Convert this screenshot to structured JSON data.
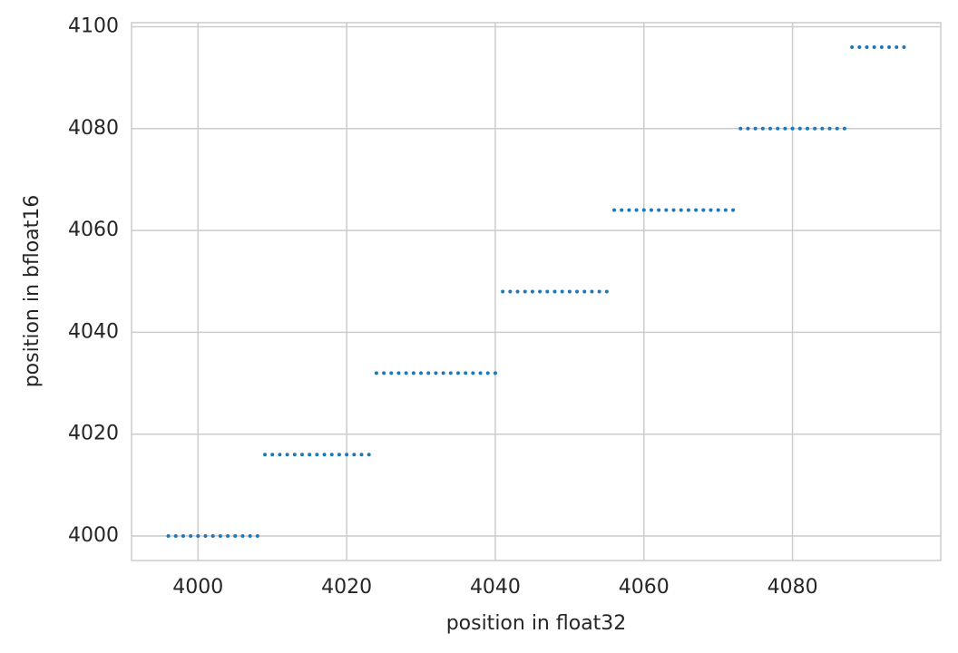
{
  "chart_data": {
    "type": "scatter",
    "x_label": "position in float32",
    "y_label": "position in bfloat16",
    "color": "#1f77b4",
    "grid": true,
    "x": [
      3996,
      3997,
      3998,
      3999,
      4000,
      4001,
      4002,
      4003,
      4004,
      4005,
      4006,
      4007,
      4008,
      4009,
      4010,
      4011,
      4012,
      4013,
      4014,
      4015,
      4016,
      4017,
      4018,
      4019,
      4020,
      4021,
      4022,
      4023,
      4024,
      4025,
      4026,
      4027,
      4028,
      4029,
      4030,
      4031,
      4032,
      4033,
      4034,
      4035,
      4036,
      4037,
      4038,
      4039,
      4040,
      4041,
      4042,
      4043,
      4044,
      4045,
      4046,
      4047,
      4048,
      4049,
      4050,
      4051,
      4052,
      4053,
      4054,
      4055,
      4056,
      4057,
      4058,
      4059,
      4060,
      4061,
      4062,
      4063,
      4064,
      4065,
      4066,
      4067,
      4068,
      4069,
      4070,
      4071,
      4072,
      4073,
      4074,
      4075,
      4076,
      4077,
      4078,
      4079,
      4080,
      4081,
      4082,
      4083,
      4084,
      4085,
      4086,
      4087,
      4088,
      4089,
      4090,
      4091,
      4092,
      4093,
      4094,
      4095
    ],
    "y": [
      4000,
      4000,
      4000,
      4000,
      4000,
      4000,
      4000,
      4000,
      4000,
      4000,
      4000,
      4000,
      4000,
      4016,
      4016,
      4016,
      4016,
      4016,
      4016,
      4016,
      4016,
      4016,
      4016,
      4016,
      4016,
      4016,
      4016,
      4016,
      4032,
      4032,
      4032,
      4032,
      4032,
      4032,
      4032,
      4032,
      4032,
      4032,
      4032,
      4032,
      4032,
      4032,
      4032,
      4032,
      4032,
      4048,
      4048,
      4048,
      4048,
      4048,
      4048,
      4048,
      4048,
      4048,
      4048,
      4048,
      4048,
      4048,
      4048,
      4048,
      4064,
      4064,
      4064,
      4064,
      4064,
      4064,
      4064,
      4064,
      4064,
      4064,
      4064,
      4064,
      4064,
      4064,
      4064,
      4064,
      4064,
      4080,
      4080,
      4080,
      4080,
      4080,
      4080,
      4080,
      4080,
      4080,
      4080,
      4080,
      4080,
      4080,
      4080,
      4080,
      4096,
      4096,
      4096,
      4096,
      4096,
      4096,
      4096,
      4096
    ],
    "xlim": [
      3991.05,
      4099.95
    ],
    "ylim": [
      3995.2,
      4100.8
    ],
    "xticks": [
      4000,
      4020,
      4040,
      4060,
      4080
    ],
    "yticks": [
      4000,
      4020,
      4040,
      4060,
      4080,
      4100
    ]
  }
}
